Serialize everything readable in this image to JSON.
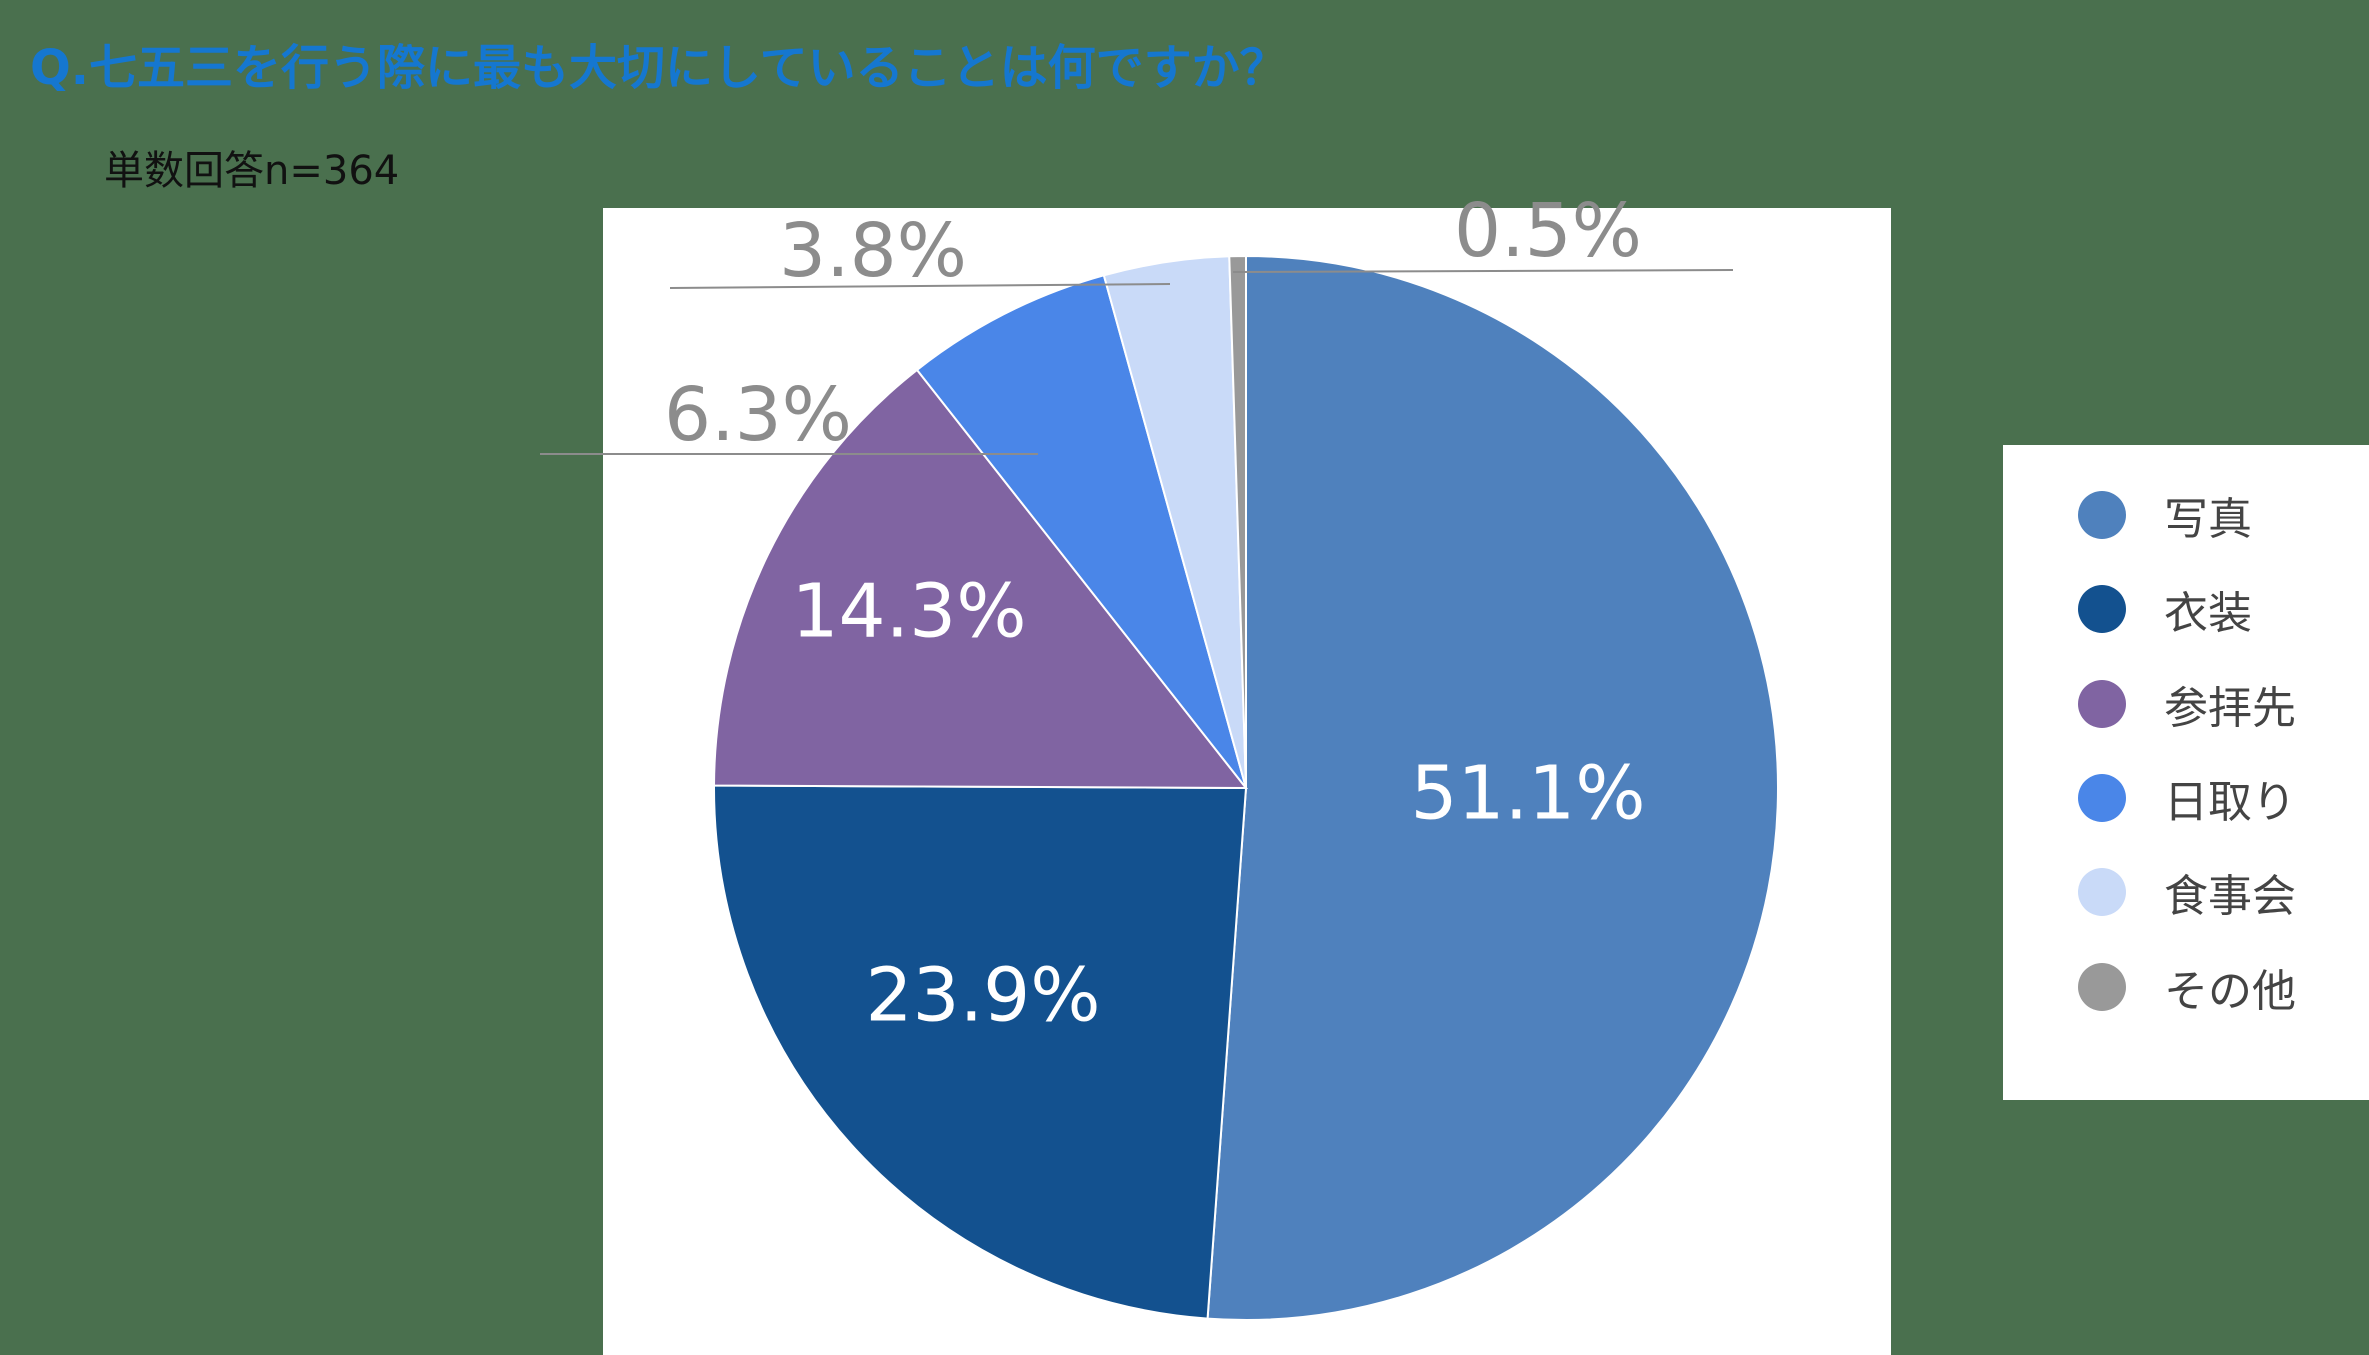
{
  "question": "Q.七五三を行う際に最も大切にしていることは何ですか？",
  "note": "単数回答n=364",
  "chart_data": {
    "type": "pie",
    "start_angle_deg": 0,
    "direction": "clockwise",
    "slices": [
      {
        "name": "写真",
        "value": 51.1,
        "label": "51.1%",
        "color": "#4f81bd",
        "label_color": "#ffffff"
      },
      {
        "name": "衣装",
        "value": 23.9,
        "label": "23.9%",
        "color": "#13518f",
        "label_color": "#ffffff"
      },
      {
        "name": "参拝先",
        "value": 14.3,
        "label": "14.3%",
        "color": "#8064a2",
        "label_color": "#ffffff"
      },
      {
        "name": "日取り",
        "value": 6.3,
        "label": "6.3%",
        "color": "#4a86e8",
        "label_color": "#8c8c8c"
      },
      {
        "name": "食事会",
        "value": 3.8,
        "label": "3.8%",
        "color": "#c9daf8",
        "label_color": "#8c8c8c"
      },
      {
        "name": "その他",
        "value": 0.5,
        "label": "0.5%",
        "color": "#999999",
        "label_color": "#8c8c8c"
      }
    ],
    "legend_position": "right"
  }
}
